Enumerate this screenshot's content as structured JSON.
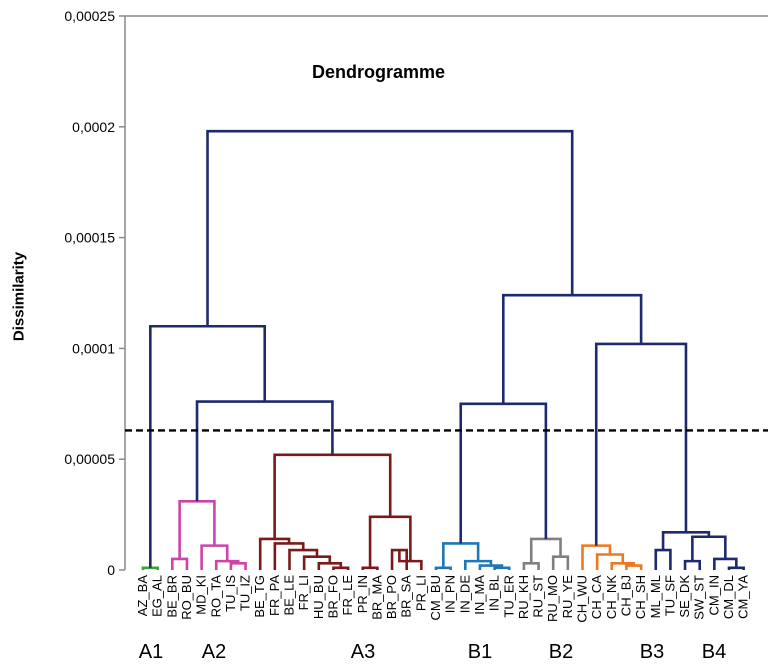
{
  "chart_data": {
    "type": "dendrogram",
    "title": "Dendrogramme",
    "ylabel": "Dissimilarity",
    "ylim": [
      0,
      0.00025
    ],
    "yticks": [
      "0",
      "0,00005",
      "0,0001",
      "0,00015",
      "0,0002",
      "0,00025"
    ],
    "ytick_values": [
      0,
      5e-05,
      0.0001,
      0.00015,
      0.0002,
      0.00025
    ],
    "cutoff": 6.3e-05,
    "leaves": [
      "AZ_BA",
      "EG_AL",
      "BE_BR",
      "RO_BU",
      "MD_KI",
      "RO_TA",
      "TU_IS",
      "TU_IZ",
      "BE_TG",
      "FR_PA",
      "BE_LE",
      "FR_LI",
      "HU_BU",
      "BR_FO",
      "FR_LE",
      "PR_IN",
      "BR_MA",
      "BR_PO",
      "BR_SA",
      "PR_LI",
      "CM_BU",
      "IN_PN",
      "IN_DE",
      "IN_MA",
      "IN_BL",
      "TU_ER",
      "RU_KH",
      "RU_ST",
      "RU_MO",
      "RU_YE",
      "CH_WU",
      "CH_CA",
      "CH_NK",
      "CH_BJ",
      "CH_SH",
      "ML_ML",
      "TU_SF",
      "SE_DK",
      "SW_ST",
      "CM_IN",
      "CM_DL",
      "CM_YA"
    ],
    "groups": [
      {
        "name": "A1",
        "color": "#3aa33a"
      },
      {
        "name": "A2",
        "color": "#cc44aa"
      },
      {
        "name": "A3",
        "color": "#7a1a1a"
      },
      {
        "name": "B1",
        "color": "#1f77b4"
      },
      {
        "name": "B2",
        "color": "#808080"
      },
      {
        "name": "B3",
        "color": "#ee7722"
      },
      {
        "name": "B4",
        "color": "#1e2a6e"
      }
    ],
    "upper_color": "#1e2a6e",
    "merges": [
      {
        "a": 0,
        "b": 1,
        "h": 1e-06,
        "group": 0
      },
      {
        "a": 2,
        "b": 3,
        "h": 5e-06,
        "group": 1
      },
      {
        "a": 6,
        "b": 7,
        "h": 3e-06,
        "group": 1
      },
      {
        "a": 5,
        "b": "n2",
        "h": 4e-06,
        "group": 1
      },
      {
        "a": 4,
        "b": "n3",
        "h": 1.1e-05,
        "group": 1
      },
      {
        "a": "n1",
        "b": "n4",
        "h": 3.1e-05,
        "group": 1
      },
      {
        "a": 13,
        "b": 14,
        "h": 1e-06,
        "group": 2
      },
      {
        "a": 12,
        "b": "n6",
        "h": 3e-06,
        "group": 2
      },
      {
        "a": 11,
        "b": "n7",
        "h": 6e-06,
        "group": 2
      },
      {
        "a": 10,
        "b": "n8",
        "h": 9e-06,
        "group": 2
      },
      {
        "a": 9,
        "b": "n9",
        "h": 1.2e-05,
        "group": 2
      },
      {
        "a": 8,
        "b": "n10",
        "h": 1.4e-05,
        "group": 2
      },
      {
        "a": 15,
        "b": 16,
        "h": 1e-06,
        "group": 2
      },
      {
        "a": 17,
        "b": 18,
        "h": 9e-06,
        "group": 2
      },
      {
        "a": "n13",
        "b": 19,
        "h": 4e-06,
        "group": 2
      },
      {
        "a": "n12",
        "b": "n14",
        "h": 2.4e-05,
        "group": 2
      },
      {
        "a": "n11",
        "b": "n15",
        "h": 5.2e-05,
        "group": 2
      },
      {
        "a": "n5",
        "b": "n16",
        "h": 7.6e-05,
        "group": null
      },
      {
        "a": "n0",
        "b": "n17",
        "h": 0.00011,
        "group": null
      },
      {
        "a": 24,
        "b": 25,
        "h": 1e-06,
        "group": 3
      },
      {
        "a": 23,
        "b": "n19",
        "h": 2e-06,
        "group": 3
      },
      {
        "a": 22,
        "b": "n20",
        "h": 4e-06,
        "group": 3
      },
      {
        "a": 20,
        "b": 21,
        "h": 1e-06,
        "group": 3
      },
      {
        "a": "n22",
        "b": "n21",
        "h": 1.2e-05,
        "group": 3
      },
      {
        "a": 28,
        "b": 29,
        "h": 6e-06,
        "group": 4
      },
      {
        "a": 26,
        "b": 27,
        "h": 3e-06,
        "group": 4
      },
      {
        "a": "n25",
        "b": "n24",
        "h": 1.4e-05,
        "group": 4
      },
      {
        "a": "n23",
        "b": "n26",
        "h": 7.5e-05,
        "group": null
      },
      {
        "a": 33,
        "b": 34,
        "h": 2e-06,
        "group": 5
      },
      {
        "a": 32,
        "b": "n28",
        "h": 3e-06,
        "group": 5
      },
      {
        "a": 31,
        "b": "n29",
        "h": 7e-06,
        "group": 5
      },
      {
        "a": 30,
        "b": "n30",
        "h": 1.1e-05,
        "group": 5
      },
      {
        "a": 35,
        "b": 36,
        "h": 9e-06,
        "group": 6
      },
      {
        "a": 40,
        "b": 41,
        "h": 1e-06,
        "group": 6
      },
      {
        "a": 39,
        "b": "n33",
        "h": 5e-06,
        "group": 6
      },
      {
        "a": 37,
        "b": 38,
        "h": 4e-06,
        "group": 6
      },
      {
        "a": "n35",
        "b": "n34",
        "h": 1.5e-05,
        "group": 6
      },
      {
        "a": "n32",
        "b": "n36",
        "h": 1.7e-05,
        "group": 6
      },
      {
        "a": "n31",
        "b": "n37",
        "h": 0.000102,
        "group": null
      },
      {
        "a": "n27",
        "b": "n38",
        "h": 0.000124,
        "group": null
      },
      {
        "a": "n18",
        "b": "n39",
        "h": 0.000198,
        "group": null
      }
    ]
  }
}
